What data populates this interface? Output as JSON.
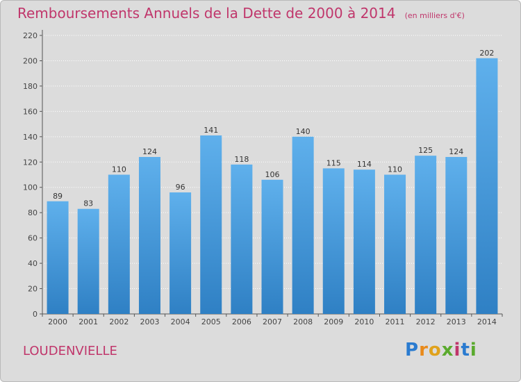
{
  "header": {
    "title": "Remboursements Annuels de la Dette de 2000 à 2014",
    "subtitle": "(en milliers d'€)"
  },
  "footer": {
    "place": "LOUDENVIELLE",
    "logo_text": "Proxiti"
  },
  "colors": {
    "accent": "#c0366b",
    "bar_light": "#5fb0ec",
    "bar_dark": "#2f80c4",
    "background": "#dcdcdc"
  },
  "chart_data": {
    "type": "bar",
    "categories": [
      "2000",
      "2001",
      "2002",
      "2003",
      "2004",
      "2005",
      "2006",
      "2007",
      "2008",
      "2009",
      "2010",
      "2011",
      "2012",
      "2013",
      "2014"
    ],
    "values": [
      89,
      83,
      110,
      124,
      96,
      141,
      118,
      106,
      140,
      115,
      114,
      110,
      125,
      124,
      202
    ],
    "yticks": [
      0,
      20,
      40,
      60,
      80,
      100,
      120,
      140,
      160,
      180,
      200,
      220
    ],
    "ylim": [
      0,
      220
    ],
    "grid": true
  }
}
